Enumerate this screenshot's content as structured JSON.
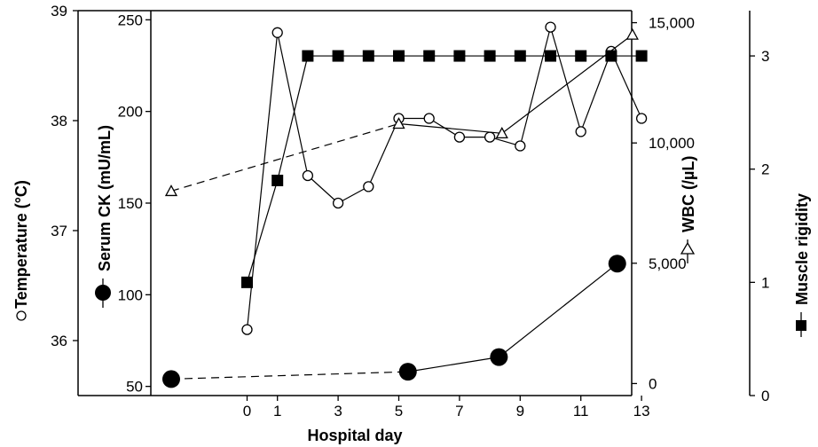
{
  "chart_data": {
    "type": "line",
    "xlabel": "Hospital day",
    "x_ticks": [
      0,
      1,
      3,
      5,
      7,
      9,
      11,
      13
    ],
    "axes": {
      "temperature": {
        "label": "Temperature (°C)",
        "ticks": [
          36,
          37,
          38,
          39
        ],
        "ylim": [
          35.5,
          39
        ]
      },
      "serum_ck": {
        "label": "Serum CK (mU/mL)",
        "ticks": [
          50,
          100,
          150,
          200,
          250
        ],
        "ylim": [
          45,
          255
        ]
      },
      "wbc": {
        "label": "WBC (/µL)",
        "ticks": [
          "0",
          "5,000",
          "10,000",
          "15,000"
        ],
        "tick_values": [
          0,
          5000,
          10000,
          15000
        ],
        "ylim": [
          -500,
          15500
        ]
      },
      "muscle_rigidity": {
        "label": "Muscle rigidity",
        "ticks": [
          0,
          1,
          2,
          3
        ],
        "ylim": [
          0,
          3.4
        ]
      }
    },
    "series": [
      {
        "name": "Temperature",
        "axis": "temperature",
        "marker": "open-circle",
        "x": [
          0,
          1,
          2,
          3,
          4,
          5,
          6,
          7,
          8,
          9,
          10,
          11,
          12,
          13
        ],
        "y": [
          36.1,
          38.8,
          37.5,
          37.25,
          37.4,
          38.02,
          38.02,
          37.85,
          37.85,
          37.77,
          38.85,
          37.9,
          38.63,
          38.02
        ]
      },
      {
        "name": "Serum CK",
        "axis": "serum_ck",
        "marker": "filled-circle",
        "x": [
          -2.5,
          5.3,
          8.3,
          12.2
        ],
        "y": [
          54,
          58,
          66,
          117
        ],
        "dashed_segments": [
          0
        ]
      },
      {
        "name": "WBC",
        "axis": "wbc",
        "marker": "open-triangle",
        "x": [
          -2.5,
          5,
          8.4,
          12.7
        ],
        "y": [
          8000,
          10800,
          10400,
          14500
        ],
        "dashed_segments": [
          0
        ]
      },
      {
        "name": "Muscle rigidity",
        "axis": "muscle_rigidity",
        "marker": "filled-square",
        "x": [
          0,
          1,
          2,
          3,
          4,
          5,
          6,
          7,
          8,
          9,
          10,
          11,
          12,
          13
        ],
        "y": [
          1,
          1.9,
          3,
          3,
          3,
          3,
          3,
          3,
          3,
          3,
          3,
          3,
          3,
          3
        ]
      }
    ]
  }
}
